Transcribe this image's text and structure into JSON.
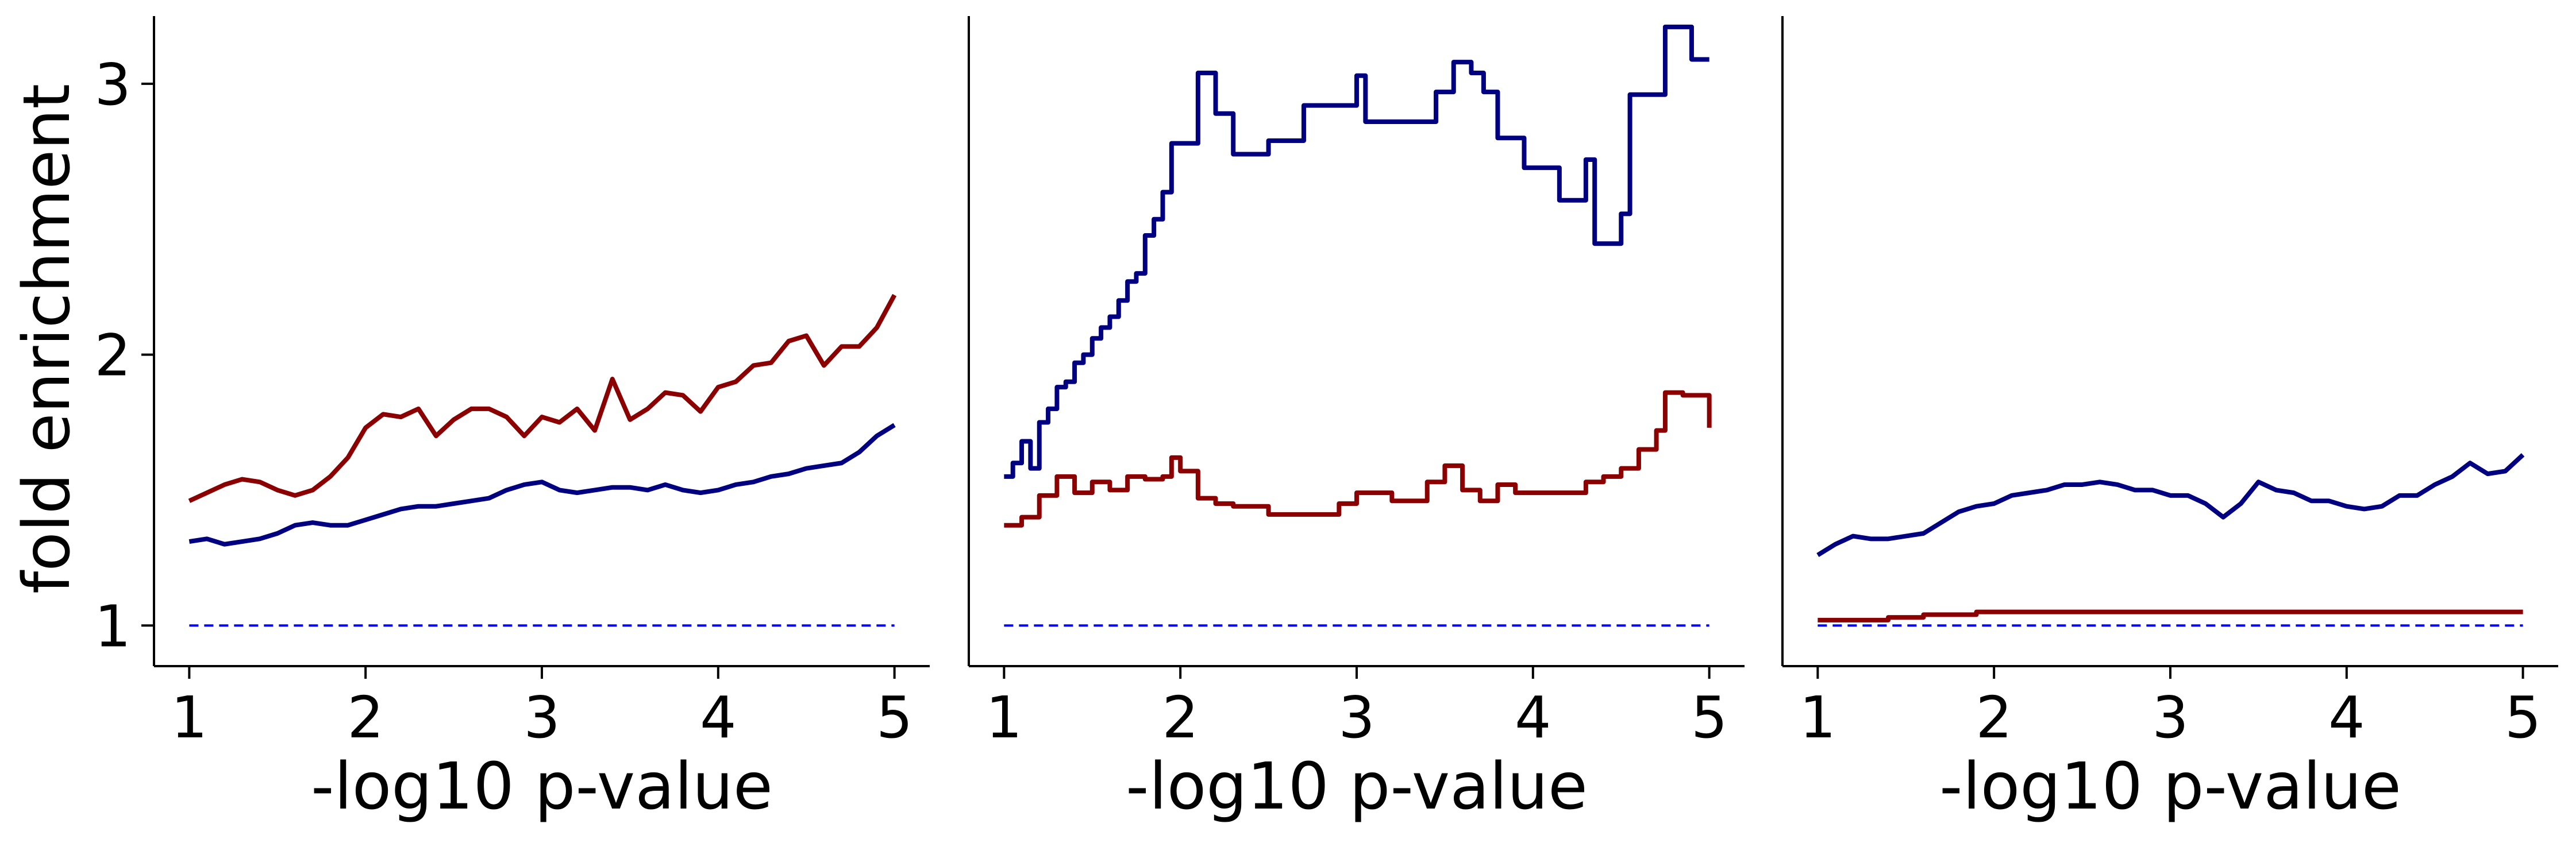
{
  "figure": {
    "ylabel": "fold enrichment",
    "colors": {
      "red_series": "#8b0000",
      "navy_series": "#000080",
      "baseline": "#0000ff"
    }
  },
  "chart_data": [
    {
      "type": "line",
      "xlabel": "-log10 p-value",
      "ylabel": "fold enrichment",
      "xlim": [
        0.8,
        5.2
      ],
      "ylim": [
        0.85,
        3.25
      ],
      "xticks": [
        1,
        2,
        3,
        4,
        5
      ],
      "yticks": [
        1,
        2,
        3
      ],
      "grid": false,
      "series": [
        {
          "color": "#8b0000",
          "step": false,
          "x": [
            1.0,
            1.1,
            1.2,
            1.3,
            1.4,
            1.5,
            1.6,
            1.7,
            1.8,
            1.9,
            2.0,
            2.1,
            2.2,
            2.3,
            2.4,
            2.5,
            2.6,
            2.7,
            2.8,
            2.9,
            3.0,
            3.1,
            3.2,
            3.3,
            3.4,
            3.5,
            3.6,
            3.7,
            3.8,
            3.9,
            4.0,
            4.1,
            4.2,
            4.3,
            4.4,
            4.5,
            4.6,
            4.7,
            4.8,
            4.9,
            5.0
          ],
          "y": [
            1.46,
            1.49,
            1.52,
            1.54,
            1.53,
            1.5,
            1.48,
            1.5,
            1.55,
            1.62,
            1.73,
            1.78,
            1.77,
            1.8,
            1.7,
            1.76,
            1.8,
            1.8,
            1.77,
            1.7,
            1.77,
            1.75,
            1.8,
            1.72,
            1.91,
            1.76,
            1.8,
            1.86,
            1.85,
            1.79,
            1.88,
            1.9,
            1.96,
            1.97,
            2.05,
            2.07,
            1.96,
            2.03,
            2.03,
            2.1,
            2.22
          ]
        },
        {
          "color": "#000080",
          "step": false,
          "x": [
            1.0,
            1.1,
            1.2,
            1.3,
            1.4,
            1.5,
            1.6,
            1.7,
            1.8,
            1.9,
            2.0,
            2.1,
            2.2,
            2.3,
            2.4,
            2.5,
            2.6,
            2.7,
            2.8,
            2.9,
            3.0,
            3.1,
            3.2,
            3.3,
            3.4,
            3.5,
            3.6,
            3.7,
            3.8,
            3.9,
            4.0,
            4.1,
            4.2,
            4.3,
            4.4,
            4.5,
            4.6,
            4.7,
            4.8,
            4.9,
            5.0
          ],
          "y": [
            1.31,
            1.32,
            1.3,
            1.31,
            1.32,
            1.34,
            1.37,
            1.38,
            1.37,
            1.37,
            1.39,
            1.41,
            1.43,
            1.44,
            1.44,
            1.45,
            1.46,
            1.47,
            1.5,
            1.52,
            1.53,
            1.5,
            1.49,
            1.5,
            1.51,
            1.51,
            1.5,
            1.52,
            1.5,
            1.49,
            1.5,
            1.52,
            1.53,
            1.55,
            1.56,
            1.58,
            1.59,
            1.6,
            1.64,
            1.7,
            1.74
          ]
        },
        {
          "color": "#0000ff",
          "dashed": true,
          "x": [
            1.0,
            5.0
          ],
          "y": [
            1.0,
            1.0
          ]
        }
      ]
    },
    {
      "type": "line",
      "xlabel": "-log10 p-value",
      "xlim": [
        0.8,
        5.2
      ],
      "ylim": [
        0.85,
        3.25
      ],
      "xticks": [
        1,
        2,
        3,
        4,
        5
      ],
      "yticks": [],
      "grid": false,
      "series": [
        {
          "color": "#000080",
          "step": true,
          "x": [
            1.0,
            1.05,
            1.1,
            1.15,
            1.2,
            1.25,
            1.3,
            1.35,
            1.4,
            1.45,
            1.5,
            1.55,
            1.6,
            1.65,
            1.7,
            1.75,
            1.8,
            1.85,
            1.9,
            1.95,
            2.0,
            2.1,
            2.2,
            2.3,
            2.5,
            2.7,
            3.0,
            3.05,
            3.2,
            3.45,
            3.55,
            3.65,
            3.72,
            3.8,
            3.95,
            4.15,
            4.3,
            4.35,
            4.5,
            4.55,
            4.75,
            4.9,
            5.0
          ],
          "y": [
            1.55,
            1.6,
            1.68,
            1.58,
            1.75,
            1.8,
            1.88,
            1.9,
            1.97,
            2.0,
            2.06,
            2.1,
            2.14,
            2.2,
            2.27,
            2.3,
            2.44,
            2.5,
            2.6,
            2.78,
            2.78,
            3.04,
            2.89,
            2.74,
            2.79,
            2.92,
            3.03,
            2.86,
            2.86,
            2.97,
            3.08,
            3.04,
            2.97,
            2.8,
            2.69,
            2.57,
            2.72,
            2.41,
            2.52,
            2.96,
            3.21,
            3.09,
            3.09
          ]
        },
        {
          "color": "#8b0000",
          "step": true,
          "x": [
            1.0,
            1.1,
            1.2,
            1.3,
            1.4,
            1.5,
            1.6,
            1.7,
            1.8,
            1.9,
            1.95,
            2.0,
            2.1,
            2.2,
            2.3,
            2.5,
            2.8,
            2.9,
            3.0,
            3.2,
            3.4,
            3.5,
            3.6,
            3.7,
            3.8,
            3.9,
            4.1,
            4.3,
            4.4,
            4.5,
            4.6,
            4.7,
            4.75,
            4.85,
            5.0
          ],
          "y": [
            1.37,
            1.4,
            1.48,
            1.55,
            1.49,
            1.53,
            1.5,
            1.55,
            1.54,
            1.55,
            1.62,
            1.57,
            1.47,
            1.45,
            1.44,
            1.41,
            1.41,
            1.45,
            1.49,
            1.46,
            1.53,
            1.59,
            1.5,
            1.46,
            1.52,
            1.49,
            1.49,
            1.53,
            1.55,
            1.58,
            1.65,
            1.72,
            1.86,
            1.85,
            1.73
          ]
        },
        {
          "color": "#0000ff",
          "dashed": true,
          "x": [
            1.0,
            5.0
          ],
          "y": [
            1.0,
            1.0
          ]
        }
      ]
    },
    {
      "type": "line",
      "xlabel": "-log10 p-value",
      "xlim": [
        0.8,
        5.2
      ],
      "ylim": [
        0.85,
        3.25
      ],
      "xticks": [
        1,
        2,
        3,
        4,
        5
      ],
      "yticks": [],
      "grid": false,
      "series": [
        {
          "color": "#000080",
          "step": false,
          "x": [
            1.0,
            1.1,
            1.2,
            1.3,
            1.4,
            1.5,
            1.6,
            1.7,
            1.8,
            1.9,
            2.0,
            2.1,
            2.2,
            2.3,
            2.4,
            2.5,
            2.6,
            2.7,
            2.8,
            2.9,
            3.0,
            3.1,
            3.2,
            3.3,
            3.4,
            3.5,
            3.6,
            3.7,
            3.8,
            3.9,
            4.0,
            4.1,
            4.2,
            4.3,
            4.4,
            4.5,
            4.6,
            4.7,
            4.8,
            4.9,
            5.0
          ],
          "y": [
            1.26,
            1.3,
            1.33,
            1.32,
            1.32,
            1.33,
            1.34,
            1.38,
            1.42,
            1.44,
            1.45,
            1.48,
            1.49,
            1.5,
            1.52,
            1.52,
            1.53,
            1.52,
            1.5,
            1.5,
            1.48,
            1.48,
            1.45,
            1.4,
            1.45,
            1.53,
            1.5,
            1.49,
            1.46,
            1.46,
            1.44,
            1.43,
            1.44,
            1.48,
            1.48,
            1.52,
            1.55,
            1.6,
            1.56,
            1.57,
            1.63
          ]
        },
        {
          "color": "#8b0000",
          "step": true,
          "x": [
            1.0,
            1.4,
            1.6,
            1.9,
            5.0
          ],
          "y": [
            1.02,
            1.03,
            1.04,
            1.05,
            1.05
          ]
        },
        {
          "color": "#0000ff",
          "dashed": true,
          "x": [
            1.0,
            5.0
          ],
          "y": [
            1.0,
            1.0
          ]
        }
      ]
    }
  ]
}
